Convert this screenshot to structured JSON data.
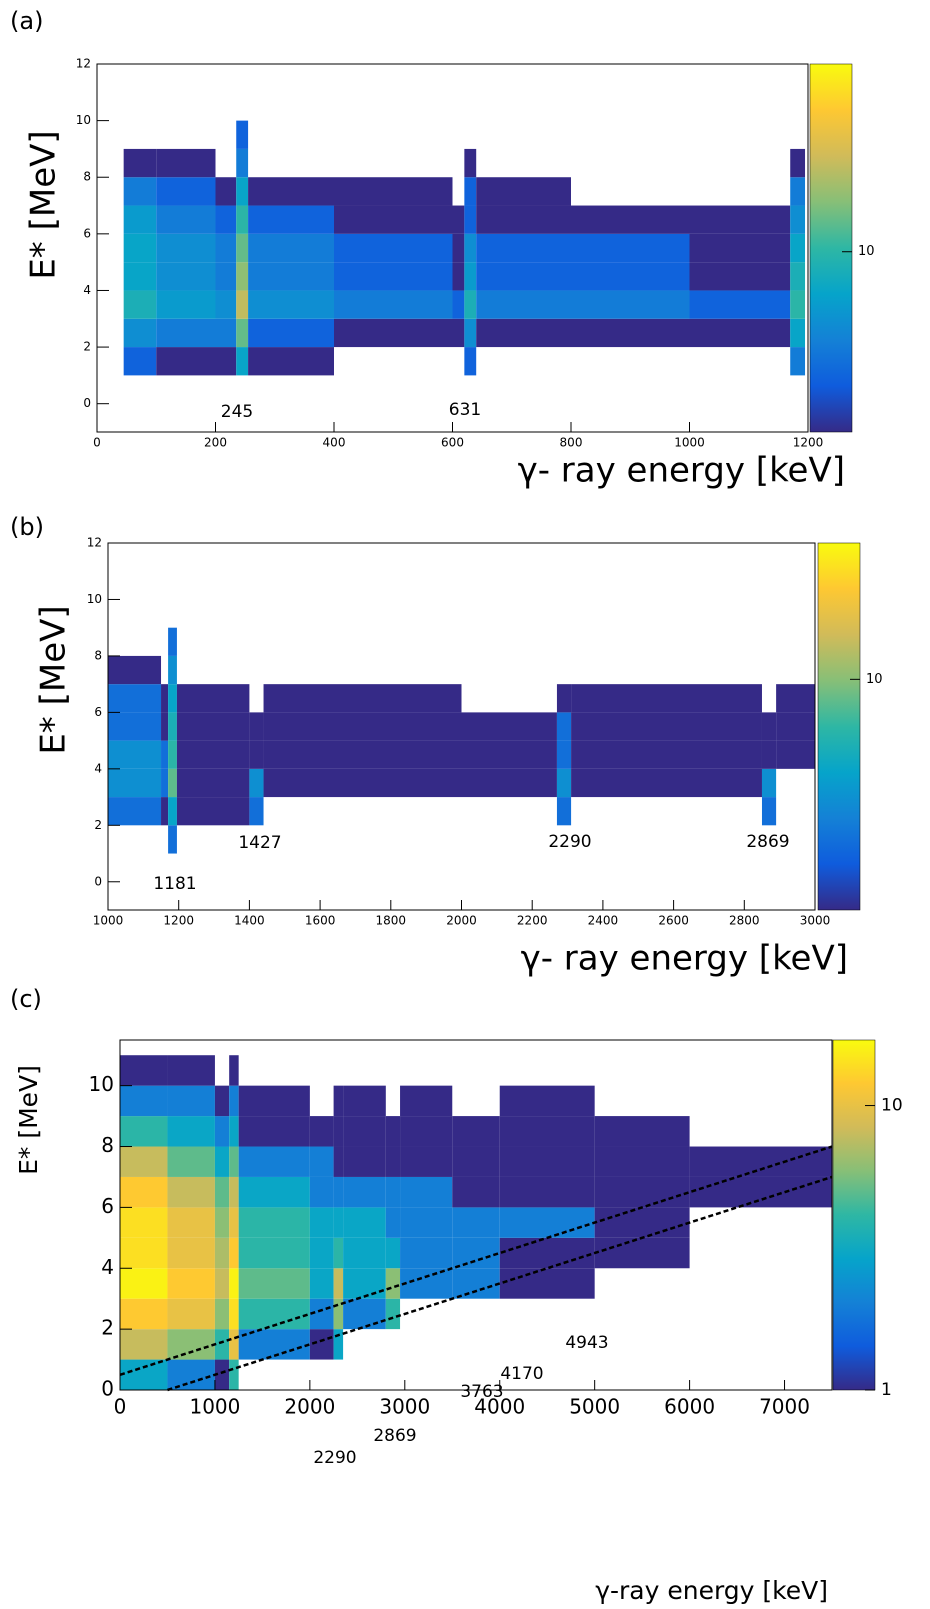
{
  "chart_data": [
    {
      "type": "heatmap",
      "panel_label": "(a)",
      "xlabel": "γ- ray energy [keV]",
      "ylabel": "E* [MeV]",
      "xlim": [
        0,
        1200
      ],
      "xticks": [
        0,
        200,
        400,
        600,
        800,
        1000,
        1200
      ],
      "ylim": [
        -1,
        12
      ],
      "yticks": [
        0,
        2,
        4,
        6,
        8,
        10,
        12
      ],
      "zlim": [
        1,
        110
      ],
      "zticks": [
        10
      ],
      "log_z": true,
      "xbins": [
        45,
        100,
        200,
        235,
        255,
        400,
        600,
        620,
        640,
        800,
        1000,
        1170,
        1195
      ],
      "ybins": [
        1,
        2,
        3,
        4,
        5,
        6,
        7,
        8,
        9,
        10
      ],
      "z": [
        [
          2,
          1,
          1,
          6,
          1,
          null,
          null,
          2,
          null,
          null,
          null,
          3
        ],
        [
          4,
          3,
          3,
          15,
          2,
          1,
          1,
          4,
          1,
          1,
          1,
          6
        ],
        [
          8,
          5,
          4,
          30,
          4,
          3,
          2,
          8,
          3,
          3,
          2,
          10
        ],
        [
          6,
          4,
          3,
          20,
          3,
          2,
          1,
          5,
          2,
          2,
          1,
          8
        ],
        [
          6,
          4,
          3,
          15,
          3,
          2,
          1,
          4,
          2,
          2,
          1,
          6
        ],
        [
          5,
          3,
          2,
          10,
          2,
          1,
          1,
          2,
          1,
          1,
          1,
          4
        ],
        [
          3,
          2,
          1,
          6,
          1,
          1,
          null,
          2,
          1,
          null,
          null,
          3
        ],
        [
          1,
          1,
          null,
          3,
          null,
          null,
          null,
          1,
          null,
          null,
          null,
          1
        ],
        [
          null,
          null,
          null,
          2,
          null,
          null,
          null,
          null,
          null,
          null,
          null,
          null
        ]
      ],
      "annotations": [
        "245",
        "631"
      ]
    },
    {
      "type": "heatmap",
      "panel_label": "(b)",
      "xlabel": "γ- ray energy [keV]",
      "ylabel": "E* [MeV]",
      "xlim": [
        1000,
        3000
      ],
      "xticks": [
        1000,
        1200,
        1400,
        1600,
        1800,
        2000,
        2200,
        2400,
        2600,
        2800,
        3000
      ],
      "ylim": [
        -1,
        12
      ],
      "yticks": [
        0,
        2,
        4,
        6,
        8,
        10,
        12
      ],
      "zlim": [
        1,
        39
      ],
      "zticks": [
        10
      ],
      "log_z": true,
      "xbins": [
        1000,
        1150,
        1170,
        1195,
        1400,
        1440,
        2000,
        2270,
        2310,
        2850,
        2890,
        3000
      ],
      "ybins": [
        1,
        2,
        3,
        4,
        5,
        6,
        7,
        8,
        9
      ],
      "z": [
        [
          null,
          null,
          2,
          null,
          null,
          null,
          null,
          null,
          null,
          null,
          null
        ],
        [
          2,
          1,
          4,
          1,
          2,
          null,
          null,
          2,
          null,
          2,
          null
        ],
        [
          3,
          2,
          8,
          1,
          3,
          1,
          1,
          3,
          1,
          3,
          null
        ],
        [
          3,
          2,
          6,
          1,
          1,
          1,
          1,
          2,
          1,
          1,
          1
        ],
        [
          2,
          1,
          5,
          1,
          1,
          1,
          1,
          2,
          1,
          1,
          1
        ],
        [
          2,
          1,
          4,
          1,
          null,
          1,
          null,
          1,
          1,
          null,
          1
        ],
        [
          1,
          null,
          3,
          null,
          null,
          null,
          null,
          null,
          null,
          null,
          null
        ],
        [
          null,
          null,
          2,
          null,
          null,
          null,
          null,
          null,
          null,
          null,
          null
        ]
      ],
      "annotations": [
        "1427",
        "2290",
        "2869",
        "1181"
      ]
    },
    {
      "type": "heatmap",
      "panel_label": "(c)",
      "xlabel": "γ-ray energy [keV]",
      "ylabel": "E* [MeV]",
      "xlim": [
        0,
        7500
      ],
      "xticks": [
        0,
        1000,
        2000,
        3000,
        4000,
        5000,
        6000,
        7000
      ],
      "ylim": [
        0,
        11.5
      ],
      "yticks": [
        0,
        2,
        4,
        6,
        8,
        10
      ],
      "zlim": [
        1,
        17
      ],
      "zticks": [
        1,
        10
      ],
      "log_z": true,
      "xbins": [
        0,
        500,
        1000,
        1150,
        1250,
        2000,
        2250,
        2350,
        2800,
        2950,
        3500,
        4000,
        5000,
        6000,
        7500
      ],
      "ybins": [
        0,
        1,
        2,
        3,
        4,
        5,
        6,
        7,
        8,
        9,
        10,
        11
      ],
      "z": [
        [
          3,
          2,
          1,
          4,
          null,
          null,
          null,
          null,
          null,
          null,
          null,
          null,
          null,
          null
        ],
        [
          8,
          6,
          4,
          10,
          2,
          1,
          3,
          null,
          null,
          null,
          null,
          null,
          null,
          null
        ],
        [
          12,
          10,
          6,
          14,
          4,
          2,
          6,
          2,
          4,
          null,
          null,
          null,
          null,
          null
        ],
        [
          16,
          12,
          8,
          16,
          5,
          3,
          8,
          3,
          6,
          2,
          2,
          1,
          null,
          null
        ],
        [
          14,
          10,
          7,
          12,
          4,
          3,
          4,
          3,
          3,
          2,
          2,
          1,
          1,
          null
        ],
        [
          14,
          10,
          6,
          10,
          4,
          3,
          3,
          3,
          2,
          2,
          2,
          2,
          1,
          null
        ],
        [
          12,
          8,
          5,
          8,
          3,
          2,
          2,
          2,
          2,
          2,
          1,
          1,
          1,
          1
        ],
        [
          8,
          5,
          3,
          5,
          2,
          2,
          1,
          1,
          1,
          1,
          1,
          1,
          1,
          1
        ],
        [
          4,
          3,
          2,
          3,
          1,
          1,
          1,
          1,
          1,
          1,
          1,
          1,
          1,
          null
        ],
        [
          2,
          2,
          1,
          2,
          1,
          null,
          1,
          1,
          null,
          1,
          null,
          1,
          null,
          null
        ],
        [
          1,
          1,
          null,
          1,
          null,
          null,
          null,
          null,
          null,
          null,
          null,
          null,
          null,
          null
        ]
      ],
      "lines": [
        {
          "x": [
            0,
            7500
          ],
          "y": [
            0.5,
            8
          ]
        },
        {
          "x": [
            500,
            7500
          ],
          "y": [
            0,
            7
          ]
        }
      ],
      "annotations": [
        "2290",
        "2869",
        "3763",
        "4170",
        "4943"
      ]
    }
  ]
}
